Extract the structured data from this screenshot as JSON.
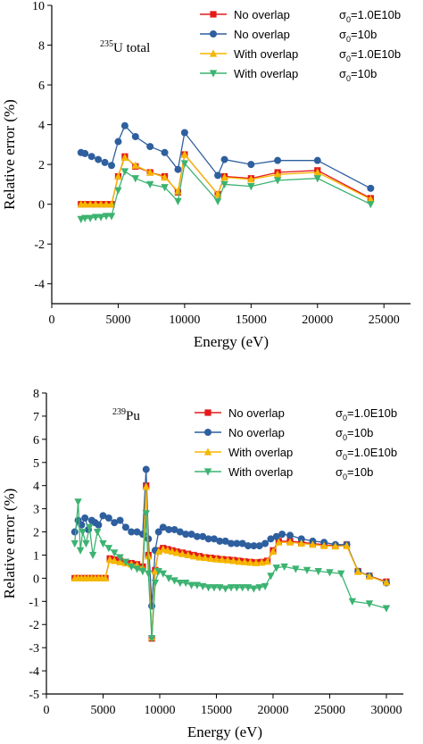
{
  "chart_data": [
    {
      "type": "line",
      "annotation": {
        "sup": "235",
        "text": "U total"
      },
      "xlabel": "Energy (eV)",
      "ylabel": "Relative error (%)",
      "xlim": [
        0,
        27000
      ],
      "ylim": [
        -5,
        10
      ],
      "xticks": [
        "0",
        "5000",
        "10000",
        "15000",
        "20000",
        "25000"
      ],
      "xtick_values": [
        0,
        5000,
        10000,
        15000,
        20000,
        25000
      ],
      "yticks": [
        "-4",
        "-2",
        "0",
        "2",
        "4",
        "6",
        "8",
        "10"
      ],
      "ytick_values": [
        -4,
        -2,
        0,
        2,
        4,
        6,
        8,
        10
      ],
      "legend_position": "top-right",
      "series": [
        {
          "name": "No overlap",
          "sigma": "=1.0E10b",
          "color": "#e41a1c",
          "marker": "square",
          "x": [
            2200,
            2500,
            2900,
            3300,
            3700,
            4100,
            4500,
            5000,
            5500,
            6300,
            7400,
            8500,
            9500,
            10000,
            12500,
            13000,
            15000,
            17000,
            20000,
            24000
          ],
          "y": [
            0.0,
            0.0,
            0.0,
            0.0,
            0.0,
            0.0,
            0.0,
            1.4,
            2.4,
            1.9,
            1.6,
            1.4,
            0.6,
            2.5,
            0.5,
            1.4,
            1.3,
            1.6,
            1.7,
            0.3
          ]
        },
        {
          "name": "No overlap",
          "sigma": "=10b",
          "color": "#2e5f9e",
          "marker": "circle",
          "x": [
            2200,
            2500,
            3000,
            3500,
            4000,
            4500,
            5000,
            5500,
            6300,
            7400,
            8500,
            9500,
            10000,
            12500,
            13000,
            15000,
            17000,
            20000,
            24000
          ],
          "y": [
            2.6,
            2.55,
            2.4,
            2.25,
            2.1,
            1.95,
            3.15,
            3.95,
            3.4,
            2.9,
            2.6,
            1.75,
            3.6,
            1.45,
            2.25,
            2.0,
            2.2,
            2.2,
            0.8
          ]
        },
        {
          "name": "With overlap",
          "sigma": "=1.0E10b",
          "color": "#f5b700",
          "marker": "triangle-up",
          "x": [
            2200,
            2500,
            2900,
            3300,
            3700,
            4100,
            4500,
            5000,
            5500,
            6300,
            7400,
            8500,
            9500,
            10000,
            12500,
            13000,
            15000,
            17000,
            20000,
            24000
          ],
          "y": [
            0.0,
            0.0,
            0.0,
            0.0,
            0.0,
            0.0,
            0.0,
            1.4,
            2.35,
            1.95,
            1.6,
            1.35,
            0.65,
            2.5,
            0.5,
            1.35,
            1.25,
            1.5,
            1.6,
            0.25
          ]
        },
        {
          "name": "With overlap",
          "sigma": "=10b",
          "color": "#3cb371",
          "marker": "triangle-down",
          "x": [
            2200,
            2500,
            2900,
            3300,
            3700,
            4100,
            4500,
            5000,
            5500,
            6300,
            7400,
            8500,
            9500,
            10000,
            12500,
            13000,
            15000,
            17000,
            20000,
            24000
          ],
          "y": [
            -0.75,
            -0.7,
            -0.7,
            -0.65,
            -0.65,
            -0.6,
            -0.6,
            0.7,
            1.65,
            1.3,
            1.0,
            0.85,
            0.15,
            2.05,
            0.15,
            1.0,
            0.9,
            1.2,
            1.3,
            0.0
          ]
        }
      ]
    },
    {
      "type": "line",
      "annotation": {
        "sup": "239",
        "text": "Pu"
      },
      "xlabel": "Energy (eV)",
      "ylabel": "Relative error (%)",
      "xlim": [
        0,
        31500
      ],
      "ylim": [
        -5,
        8
      ],
      "xticks": [
        "0",
        "5000",
        "10000",
        "15000",
        "20000",
        "25000",
        "30000"
      ],
      "xtick_values": [
        0,
        5000,
        10000,
        15000,
        20000,
        25000,
        30000
      ],
      "yticks": [
        "-5",
        "-4",
        "-3",
        "-2",
        "-1",
        "0",
        "1",
        "2",
        "3",
        "4",
        "5",
        "6",
        "7",
        "8"
      ],
      "ytick_values": [
        -5,
        -4,
        -3,
        -2,
        -1,
        0,
        1,
        2,
        3,
        4,
        5,
        6,
        7,
        8
      ],
      "legend_position": "top-right",
      "series": [
        {
          "name": "No overlap",
          "sigma": "=1.0E10b",
          "color": "#e41a1c",
          "marker": "square",
          "x": [
            2500,
            2800,
            3100,
            3400,
            3700,
            4000,
            4300,
            4600,
            4900,
            5200,
            5600,
            6000,
            6500,
            7000,
            7500,
            8000,
            8500,
            8800,
            9000,
            9300,
            9600,
            9900,
            10300,
            10700,
            11100,
            11500,
            12000,
            12500,
            13000,
            13500,
            14000,
            14500,
            15000,
            15500,
            16000,
            16500,
            17000,
            17500,
            18000,
            18500,
            19000,
            19500,
            20000,
            20500,
            21500,
            22500,
            23500,
            24500,
            25500,
            26500,
            27500,
            28500,
            30000
          ],
          "y": [
            0.0,
            0.0,
            0.0,
            0.0,
            0.0,
            0.0,
            0.0,
            0.0,
            0.0,
            0.0,
            0.85,
            0.8,
            0.75,
            0.7,
            0.65,
            0.6,
            0.5,
            4.0,
            1.0,
            -2.6,
            0.35,
            1.2,
            1.3,
            1.25,
            1.2,
            1.15,
            1.1,
            1.05,
            1.0,
            0.95,
            0.9,
            0.88,
            0.85,
            0.82,
            0.8,
            0.78,
            0.75,
            0.72,
            0.7,
            0.68,
            0.7,
            0.75,
            1.2,
            1.6,
            1.6,
            1.55,
            1.5,
            1.45,
            1.4,
            1.45,
            0.3,
            0.1,
            -0.15
          ]
        },
        {
          "name": "No overlap",
          "sigma": "=10b",
          "color": "#2e5f9e",
          "marker": "circle",
          "x": [
            2500,
            2800,
            3100,
            3400,
            3700,
            4000,
            4300,
            4600,
            5000,
            5500,
            6000,
            6500,
            7000,
            7500,
            8000,
            8500,
            8800,
            9000,
            9300,
            9600,
            9900,
            10300,
            10800,
            11300,
            11800,
            12300,
            12800,
            13300,
            13800,
            14300,
            14800,
            15300,
            15800,
            16300,
            16800,
            17300,
            17800,
            18300,
            18800,
            19300,
            19800,
            20300,
            20800,
            21500,
            22500,
            23500,
            24500,
            25500,
            26500,
            27500,
            28500,
            30000
          ],
          "y": [
            2.0,
            2.5,
            2.3,
            2.6,
            2.1,
            2.5,
            2.4,
            2.3,
            2.7,
            2.6,
            2.4,
            2.5,
            2.2,
            2.0,
            2.0,
            1.9,
            4.7,
            1.7,
            -1.2,
            1.2,
            2.0,
            2.2,
            2.1,
            2.1,
            2.0,
            1.9,
            1.9,
            1.8,
            1.8,
            1.7,
            1.7,
            1.6,
            1.6,
            1.5,
            1.5,
            1.5,
            1.4,
            1.4,
            1.4,
            1.5,
            1.7,
            1.8,
            1.9,
            1.85,
            1.7,
            1.6,
            1.55,
            1.45,
            1.45,
            0.3,
            0.1,
            -0.2
          ]
        },
        {
          "name": "With overlap",
          "sigma": "=1.0E10b",
          "color": "#f5b700",
          "marker": "triangle-up",
          "x": [
            2500,
            2800,
            3100,
            3400,
            3700,
            4000,
            4300,
            4600,
            4900,
            5200,
            5600,
            6000,
            6500,
            7000,
            7500,
            8000,
            8500,
            8800,
            9000,
            9300,
            9600,
            9900,
            10300,
            10700,
            11100,
            11500,
            12000,
            12500,
            13000,
            13500,
            14000,
            14500,
            15000,
            15500,
            16000,
            16500,
            17000,
            17500,
            18000,
            18500,
            19000,
            19500,
            20000,
            20500,
            21500,
            22500,
            23500,
            24500,
            25500,
            26500,
            27500,
            28500,
            30000
          ],
          "y": [
            0.0,
            0.0,
            0.0,
            0.0,
            0.0,
            0.0,
            0.0,
            0.0,
            0.0,
            0.0,
            0.8,
            0.75,
            0.7,
            0.65,
            0.6,
            0.55,
            0.45,
            3.95,
            0.95,
            -2.55,
            0.3,
            1.15,
            1.25,
            1.2,
            1.15,
            1.1,
            1.05,
            1.0,
            0.95,
            0.9,
            0.88,
            0.85,
            0.82,
            0.8,
            0.78,
            0.75,
            0.72,
            0.7,
            0.68,
            0.66,
            0.68,
            0.72,
            1.15,
            1.55,
            1.55,
            1.5,
            1.45,
            1.4,
            1.38,
            1.4,
            0.28,
            0.08,
            -0.18
          ]
        },
        {
          "name": "With overlap",
          "sigma": "=10b",
          "color": "#3cb371",
          "marker": "triangle-down",
          "x": [
            2500,
            2800,
            3000,
            3200,
            3500,
            3800,
            4100,
            4500,
            5000,
            5500,
            6000,
            6500,
            7000,
            7500,
            8000,
            8500,
            8800,
            9000,
            9300,
            9600,
            9900,
            10300,
            10800,
            11300,
            11800,
            12300,
            12800,
            13300,
            13800,
            14300,
            14800,
            15300,
            15800,
            16300,
            16800,
            17300,
            17800,
            18300,
            18800,
            19300,
            19800,
            20300,
            21000,
            22000,
            23000,
            24000,
            25000,
            26000,
            27000,
            28500,
            30000
          ],
          "y": [
            1.5,
            3.3,
            1.2,
            2.0,
            1.5,
            2.2,
            1.0,
            2.0,
            1.5,
            1.3,
            1.1,
            0.9,
            0.7,
            0.5,
            0.4,
            0.3,
            2.8,
            0.2,
            -2.6,
            -0.2,
            0.3,
            0.2,
            0.0,
            -0.1,
            -0.2,
            -0.2,
            -0.3,
            -0.3,
            -0.35,
            -0.4,
            -0.4,
            -0.4,
            -0.45,
            -0.4,
            -0.4,
            -0.4,
            -0.4,
            -0.45,
            -0.4,
            -0.35,
            0.1,
            0.45,
            0.5,
            0.4,
            0.35,
            0.3,
            0.25,
            0.2,
            -1.0,
            -1.1,
            -1.3
          ]
        }
      ]
    }
  ]
}
